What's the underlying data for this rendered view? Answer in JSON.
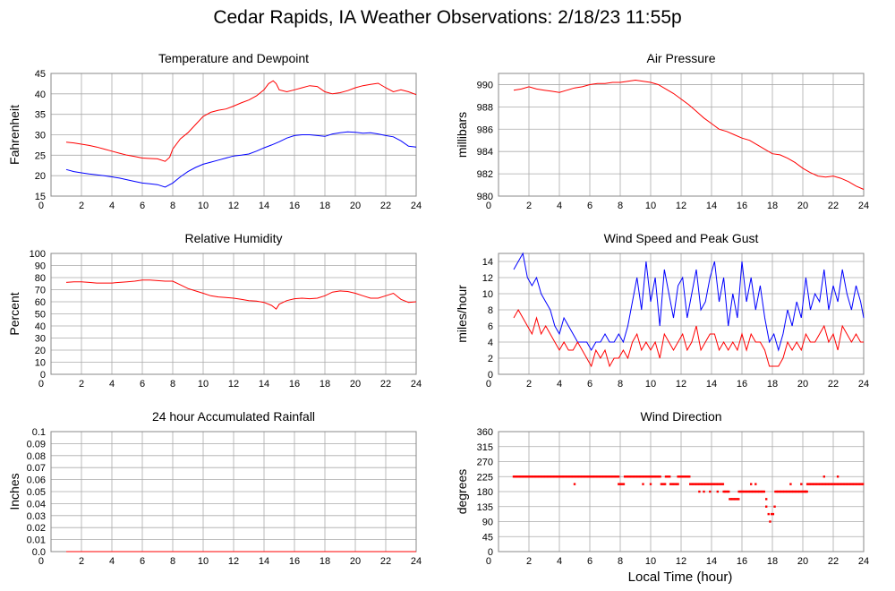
{
  "page": {
    "title": "Cedar Rapids, IA Weather Observations: 2/18/23 11:55p",
    "x_title": "Local Time (hour)"
  },
  "colors": {
    "red": "#ff0000",
    "blue": "#0000ff",
    "grid": "#aaaaaa",
    "frame": "#888888"
  },
  "chart_data": [
    {
      "id": "temp",
      "type": "line",
      "title": "Temperature and Dewpoint",
      "xlabel": "",
      "ylabel": "Fahrenheit",
      "xlim": [
        0,
        24
      ],
      "ylim": [
        15,
        45
      ],
      "xticks": [
        2,
        4,
        6,
        8,
        10,
        12,
        14,
        16,
        18,
        20,
        22,
        24
      ],
      "yticks": [
        15,
        20,
        25,
        30,
        35,
        40,
        45
      ],
      "series": [
        {
          "color": "#ff0000",
          "x": [
            1.0,
            1.5,
            2,
            2.5,
            3,
            3.5,
            4,
            4.5,
            5,
            5.5,
            6,
            6.5,
            7,
            7.5,
            7.8,
            8,
            8.5,
            9,
            9.5,
            10,
            10.5,
            11,
            11.5,
            12,
            12.5,
            13,
            13.5,
            14,
            14.3,
            14.6,
            14.8,
            15,
            15.5,
            16,
            16.5,
            17,
            17.5,
            18,
            18.5,
            19,
            19.5,
            20,
            20.5,
            21,
            21.5,
            22,
            22.5,
            23,
            23.5,
            24
          ],
          "y": [
            28.2,
            28.0,
            27.7,
            27.4,
            27.0,
            26.5,
            26.0,
            25.5,
            25.0,
            24.7,
            24.3,
            24.2,
            24.1,
            23.5,
            24.5,
            26.5,
            29,
            30.5,
            32.5,
            34.5,
            35.5,
            36,
            36.3,
            37,
            37.8,
            38.5,
            39.5,
            41,
            42.5,
            43.2,
            42.5,
            41,
            40.5,
            41,
            41.5,
            42,
            41.8,
            40.5,
            40,
            40.3,
            40.8,
            41.5,
            42,
            42.3,
            42.6,
            41.5,
            40.5,
            41,
            40.5,
            39.8
          ]
        },
        {
          "color": "#0000ff",
          "x": [
            1.0,
            1.5,
            2,
            2.5,
            3,
            3.5,
            4,
            4.5,
            5,
            5.5,
            6,
            6.5,
            7,
            7.5,
            8,
            8.5,
            9,
            9.5,
            10,
            10.5,
            11,
            11.5,
            12,
            12.5,
            13,
            13.5,
            14,
            14.5,
            15,
            15.5,
            16,
            16.5,
            17,
            17.5,
            18,
            18.5,
            19,
            19.5,
            20,
            20.5,
            21,
            21.5,
            22,
            22.5,
            23,
            23.5,
            24
          ],
          "y": [
            21.5,
            21.0,
            20.7,
            20.4,
            20.2,
            20.0,
            19.7,
            19.4,
            19.0,
            18.6,
            18.2,
            18.0,
            17.8,
            17.2,
            18.2,
            19.7,
            21,
            22,
            22.8,
            23.3,
            23.8,
            24.3,
            24.8,
            25,
            25.3,
            26,
            26.8,
            27.5,
            28.3,
            29.2,
            29.8,
            30,
            30,
            29.8,
            29.6,
            30.2,
            30.5,
            30.7,
            30.6,
            30.4,
            30.5,
            30.2,
            29.8,
            29.5,
            28.5,
            27.2,
            27
          ]
        }
      ]
    },
    {
      "id": "pressure",
      "type": "line",
      "title": "Air Pressure",
      "xlabel": "",
      "ylabel": "millibars",
      "xlim": [
        0,
        24
      ],
      "ylim": [
        980,
        991
      ],
      "xticks": [
        2,
        4,
        6,
        8,
        10,
        12,
        14,
        16,
        18,
        20,
        22,
        24
      ],
      "yticks": [
        980,
        982,
        984,
        986,
        988,
        990
      ],
      "series": [
        {
          "color": "#ff0000",
          "x": [
            1.0,
            1.5,
            2,
            2.5,
            3,
            3.5,
            4,
            4.5,
            5,
            5.5,
            6,
            6.5,
            7,
            7.5,
            8,
            8.5,
            9,
            9.5,
            10,
            10.5,
            11,
            11.5,
            12,
            12.5,
            13,
            13.5,
            14,
            14.5,
            15,
            15.5,
            16,
            16.5,
            17,
            17.5,
            18,
            18.5,
            19,
            19.5,
            20,
            20.5,
            21,
            21.5,
            22,
            22.5,
            23,
            23.5,
            24
          ],
          "y": [
            989.5,
            989.6,
            989.8,
            989.6,
            989.5,
            989.4,
            989.3,
            989.5,
            989.7,
            989.8,
            990.0,
            990.1,
            990.1,
            990.2,
            990.2,
            990.3,
            990.4,
            990.3,
            990.2,
            990.0,
            989.6,
            989.2,
            988.7,
            988.2,
            987.6,
            987.0,
            986.5,
            986.0,
            985.8,
            985.5,
            985.2,
            985.0,
            984.6,
            984.2,
            983.8,
            983.7,
            983.4,
            983.0,
            982.5,
            982.1,
            981.8,
            981.7,
            981.8,
            981.6,
            981.3,
            980.9,
            980.6
          ]
        }
      ]
    },
    {
      "id": "humidity",
      "type": "line",
      "title": "Relative Humidity",
      "xlabel": "",
      "ylabel": "Percent",
      "xlim": [
        0,
        24
      ],
      "ylim": [
        0,
        100
      ],
      "xticks": [
        2,
        4,
        6,
        8,
        10,
        12,
        14,
        16,
        18,
        20,
        22,
        24
      ],
      "yticks": [
        0,
        10,
        20,
        30,
        40,
        50,
        60,
        70,
        80,
        90,
        100
      ],
      "series": [
        {
          "color": "#ff0000",
          "x": [
            1.0,
            1.5,
            2,
            2.5,
            3,
            3.5,
            4,
            4.5,
            5,
            5.5,
            6,
            6.5,
            7,
            7.5,
            8,
            8.5,
            9,
            9.5,
            10,
            10.5,
            11,
            11.5,
            12,
            12.5,
            13,
            13.5,
            14,
            14.5,
            14.8,
            15,
            15.5,
            16,
            16.5,
            17,
            17.5,
            18,
            18.5,
            19,
            19.5,
            20,
            20.5,
            21,
            21.5,
            22,
            22.5,
            23,
            23.5,
            24
          ],
          "y": [
            76,
            76.5,
            76.5,
            76,
            75.5,
            75.5,
            75.5,
            76,
            76.5,
            77,
            78,
            78,
            77.5,
            77,
            77,
            74,
            71,
            69,
            67,
            65,
            64,
            63.5,
            63,
            62,
            61,
            60.5,
            59.5,
            57,
            54,
            58,
            61,
            62.5,
            63,
            62.5,
            63,
            65,
            68,
            69,
            68.5,
            67,
            65,
            63,
            63,
            65,
            67,
            62,
            59.5,
            60
          ]
        }
      ]
    },
    {
      "id": "wind",
      "type": "line",
      "title": "Wind Speed and Peak Gust",
      "xlabel": "",
      "ylabel": "miles/hour",
      "xlim": [
        0,
        24
      ],
      "ylim": [
        0,
        15
      ],
      "xticks": [
        2,
        4,
        6,
        8,
        10,
        12,
        14,
        16,
        18,
        20,
        22,
        24
      ],
      "yticks": [
        0,
        2,
        4,
        6,
        8,
        10,
        12,
        14
      ],
      "series": [
        {
          "color": "#0000ff",
          "x": [
            1.0,
            1.3,
            1.6,
            1.9,
            2.2,
            2.5,
            2.8,
            3.1,
            3.4,
            3.7,
            4.0,
            4.3,
            4.6,
            4.9,
            5.2,
            5.5,
            5.8,
            6.1,
            6.4,
            6.7,
            7.0,
            7.3,
            7.6,
            7.9,
            8.2,
            8.5,
            8.8,
            9.1,
            9.4,
            9.7,
            10.0,
            10.3,
            10.6,
            10.9,
            11.2,
            11.5,
            11.8,
            12.1,
            12.4,
            12.7,
            13.0,
            13.3,
            13.6,
            13.9,
            14.2,
            14.5,
            14.8,
            15.1,
            15.4,
            15.7,
            16.0,
            16.3,
            16.6,
            16.9,
            17.2,
            17.5,
            17.8,
            18.1,
            18.4,
            18.7,
            19.0,
            19.3,
            19.6,
            19.9,
            20.2,
            20.5,
            20.8,
            21.1,
            21.4,
            21.7,
            22.0,
            22.3,
            22.6,
            22.9,
            23.2,
            23.5,
            23.8,
            24.0
          ],
          "y": [
            13,
            14,
            15,
            12,
            11,
            12,
            10,
            9,
            8,
            6,
            5,
            7,
            6,
            5,
            4,
            4,
            4,
            3,
            4,
            4,
            5,
            4,
            4,
            5,
            4,
            6,
            9,
            12,
            8,
            14,
            9,
            12,
            6,
            13,
            10,
            7,
            11,
            12,
            7,
            10,
            13,
            8,
            9,
            12,
            14,
            9,
            12,
            6,
            10,
            7,
            14,
            9,
            12,
            8,
            11,
            7,
            4,
            5,
            3,
            5,
            8,
            6,
            9,
            7,
            12,
            8,
            10,
            9,
            13,
            8,
            11,
            9,
            13,
            10,
            8,
            11,
            9,
            7
          ]
        },
        {
          "color": "#ff0000",
          "x": [
            1.0,
            1.3,
            1.6,
            1.9,
            2.2,
            2.5,
            2.8,
            3.1,
            3.4,
            3.7,
            4.0,
            4.3,
            4.6,
            4.9,
            5.2,
            5.5,
            5.8,
            6.1,
            6.4,
            6.7,
            7.0,
            7.3,
            7.6,
            7.9,
            8.2,
            8.5,
            8.8,
            9.1,
            9.4,
            9.7,
            10.0,
            10.3,
            10.6,
            10.9,
            11.2,
            11.5,
            11.8,
            12.1,
            12.4,
            12.7,
            13.0,
            13.3,
            13.6,
            13.9,
            14.2,
            14.5,
            14.8,
            15.1,
            15.4,
            15.7,
            16.0,
            16.3,
            16.6,
            16.9,
            17.2,
            17.5,
            17.8,
            18.1,
            18.4,
            18.7,
            19.0,
            19.3,
            19.6,
            19.9,
            20.2,
            20.5,
            20.8,
            21.1,
            21.4,
            21.7,
            22.0,
            22.3,
            22.6,
            22.9,
            23.2,
            23.5,
            23.8,
            24.0
          ],
          "y": [
            7,
            8,
            7,
            6,
            5,
            7,
            5,
            6,
            5,
            4,
            3,
            4,
            3,
            3,
            4,
            3,
            2,
            1,
            3,
            2,
            3,
            1,
            2,
            2,
            3,
            2,
            4,
            5,
            3,
            4,
            3,
            4,
            2,
            5,
            4,
            3,
            4,
            5,
            3,
            4,
            6,
            3,
            4,
            5,
            5,
            3,
            4,
            3,
            4,
            3,
            5,
            3,
            5,
            4,
            4,
            3,
            1,
            1,
            1,
            2,
            4,
            3,
            4,
            3,
            5,
            4,
            4,
            5,
            6,
            4,
            5,
            3,
            6,
            5,
            4,
            5,
            4,
            4
          ]
        }
      ]
    },
    {
      "id": "rain",
      "type": "line",
      "title": "24 hour Accumulated Rainfall",
      "xlabel": "",
      "ylabel": "Inches",
      "xlim": [
        0,
        24
      ],
      "ylim": [
        0,
        0.1
      ],
      "xticks": [
        2,
        4,
        6,
        8,
        10,
        12,
        14,
        16,
        18,
        20,
        22,
        24
      ],
      "yticks": [
        0.0,
        0.01,
        0.02,
        0.03,
        0.04,
        0.05,
        0.06,
        0.07,
        0.08,
        0.09,
        0.1
      ],
      "ytick_labels": [
        "0.0",
        "0.01",
        "0.02",
        "0.03",
        "0.04",
        "0.05",
        "0.06",
        "0.07",
        "0.08",
        "0.09",
        "0.1"
      ],
      "series": [
        {
          "color": "#ff0000",
          "x": [
            1.0,
            24.0
          ],
          "y": [
            0,
            0
          ]
        }
      ]
    },
    {
      "id": "direction",
      "type": "scatter",
      "title": "Wind Direction",
      "xlabel": "Local Time (hour)",
      "ylabel": "degrees",
      "xlim": [
        0,
        24
      ],
      "ylim": [
        0,
        360
      ],
      "xticks": [
        2,
        4,
        6,
        8,
        10,
        12,
        14,
        16,
        18,
        20,
        22,
        24
      ],
      "yticks": [
        0,
        45,
        90,
        135,
        180,
        225,
        270,
        315,
        360
      ],
      "segments": [
        {
          "from": 1.0,
          "to": 7.9,
          "value": 225
        },
        {
          "from": 7.9,
          "to": 8.3,
          "value": 202.5
        },
        {
          "from": 8.3,
          "to": 10.7,
          "value": 225
        },
        {
          "from": 10.7,
          "to": 11.0,
          "value": 202.5
        },
        {
          "from": 11.0,
          "to": 11.3,
          "value": 225
        },
        {
          "from": 11.3,
          "to": 11.8,
          "value": 202.5
        },
        {
          "from": 11.8,
          "to": 12.6,
          "value": 225
        },
        {
          "from": 12.6,
          "to": 14.8,
          "value": 202.5
        },
        {
          "from": 14.8,
          "to": 15.2,
          "value": 180
        },
        {
          "from": 15.2,
          "to": 15.8,
          "value": 157.5
        },
        {
          "from": 15.8,
          "to": 17.5,
          "value": 180
        },
        {
          "from": 18.2,
          "to": 20.3,
          "value": 180
        },
        {
          "from": 20.3,
          "to": 24.0,
          "value": 202.5
        }
      ],
      "points": [
        {
          "x": 5.0,
          "y": 202.5
        },
        {
          "x": 9.5,
          "y": 202.5
        },
        {
          "x": 10.0,
          "y": 202.5
        },
        {
          "x": 13.2,
          "y": 180
        },
        {
          "x": 13.5,
          "y": 180
        },
        {
          "x": 13.9,
          "y": 180
        },
        {
          "x": 14.4,
          "y": 180
        },
        {
          "x": 16.6,
          "y": 202.5
        },
        {
          "x": 16.9,
          "y": 202.5
        },
        {
          "x": 17.6,
          "y": 157.5
        },
        {
          "x": 17.6,
          "y": 135
        },
        {
          "x": 17.75,
          "y": 112.5
        },
        {
          "x": 17.85,
          "y": 90
        },
        {
          "x": 17.95,
          "y": 112.5
        },
        {
          "x": 18.05,
          "y": 112.5
        },
        {
          "x": 18.15,
          "y": 135
        },
        {
          "x": 19.2,
          "y": 202.5
        },
        {
          "x": 19.9,
          "y": 202.5
        },
        {
          "x": 20.2,
          "y": 180
        },
        {
          "x": 21.4,
          "y": 225
        },
        {
          "x": 22.3,
          "y": 225
        }
      ]
    }
  ]
}
